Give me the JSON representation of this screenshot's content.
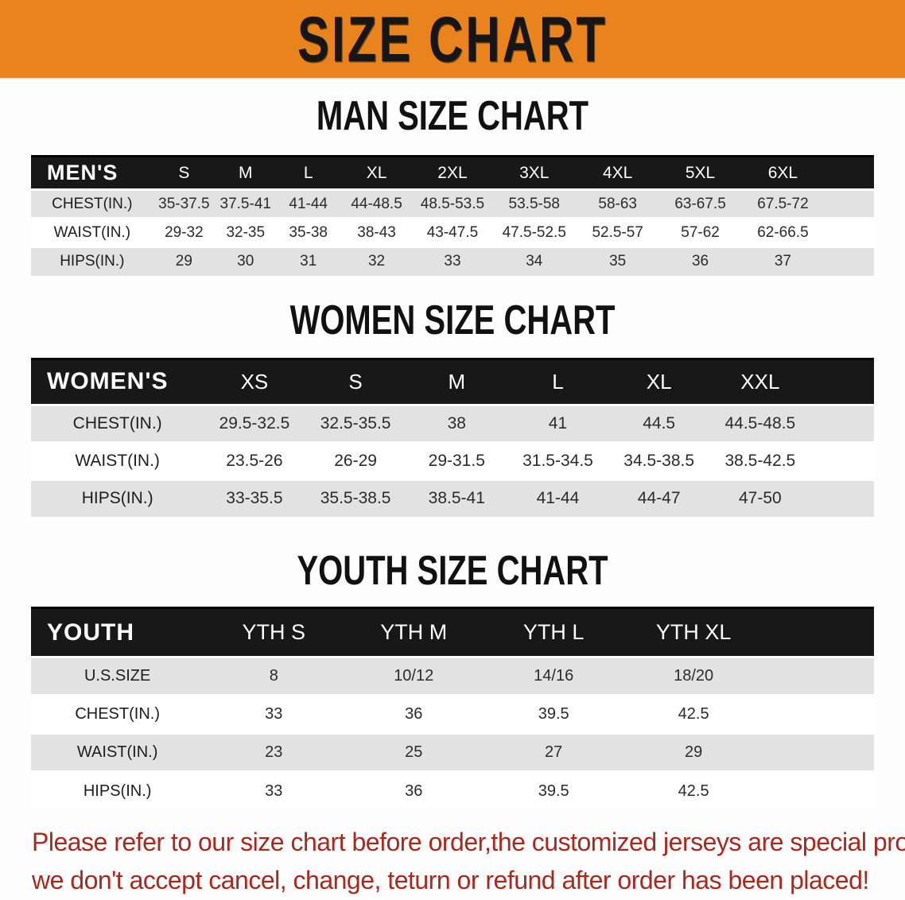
{
  "banner": {
    "title": "SIZE CHART",
    "bg_color": "#e8831d",
    "text_color": "#161616"
  },
  "sections": [
    {
      "title": "MAN SIZE CHART",
      "table": {
        "corner_label": "MEN'S",
        "columns": [
          "S",
          "M",
          "L",
          "XL",
          "2XL",
          "3XL",
          "4XL",
          "5XL",
          "6XL"
        ],
        "rows": [
          {
            "label": "CHEST(IN.)",
            "values": [
              "35-37.5",
              "37.5-41",
              "41-44",
              "44-48.5",
              "48.5-53.5",
              "53.5-58",
              "58-63",
              "63-67.5",
              "67.5-72"
            ]
          },
          {
            "label": "WAIST(IN.)",
            "values": [
              "29-32",
              "32-35",
              "35-38",
              "38-43",
              "43-47.5",
              "47.5-52.5",
              "52.5-57",
              "57-62",
              "62-66.5"
            ]
          },
          {
            "label": "HIPS(IN.)",
            "values": [
              "29",
              "30",
              "31",
              "32",
              "33",
              "34",
              "35",
              "36",
              "37"
            ]
          }
        ]
      }
    },
    {
      "title": "WOMEN SIZE CHART",
      "table": {
        "corner_label": "WOMEN'S",
        "columns": [
          "XS",
          "S",
          "M",
          "L",
          "XL",
          "XXL"
        ],
        "rows": [
          {
            "label": "CHEST(IN.)",
            "values": [
              "29.5-32.5",
              "32.5-35.5",
              "38",
              "41",
              "44.5",
              "44.5-48.5"
            ]
          },
          {
            "label": "WAIST(IN.)",
            "values": [
              "23.5-26",
              "26-29",
              "29-31.5",
              "31.5-34.5",
              "34.5-38.5",
              "38.5-42.5"
            ]
          },
          {
            "label": "HIPS(IN.)",
            "values": [
              "33-35.5",
              "35.5-38.5",
              "38.5-41",
              "41-44",
              "44-47",
              "47-50"
            ]
          }
        ]
      }
    },
    {
      "title": "YOUTH SIZE CHART",
      "table": {
        "corner_label": "YOUTH",
        "columns": [
          "YTH S",
          "YTH M",
          "YTH L",
          "YTH XL"
        ],
        "rows": [
          {
            "label": "U.S.SIZE",
            "values": [
              "8",
              "10/12",
              "14/16",
              "18/20"
            ]
          },
          {
            "label": "CHEST(IN.)",
            "values": [
              "33",
              "36",
              "39.5",
              "42.5"
            ]
          },
          {
            "label": "WAIST(IN.)",
            "values": [
              "23",
              "25",
              "27",
              "29"
            ]
          },
          {
            "label": "HIPS(IN.)",
            "values": [
              "33",
              "36",
              "39.5",
              "42.5"
            ]
          }
        ]
      }
    }
  ],
  "disclaimer": {
    "line1": "Please refer to our size chart before order,the customized jerseys are special products,",
    "line2": "we don't accept cancel, change, teturn or refund after order has been placed!",
    "color": "#a8291f"
  }
}
